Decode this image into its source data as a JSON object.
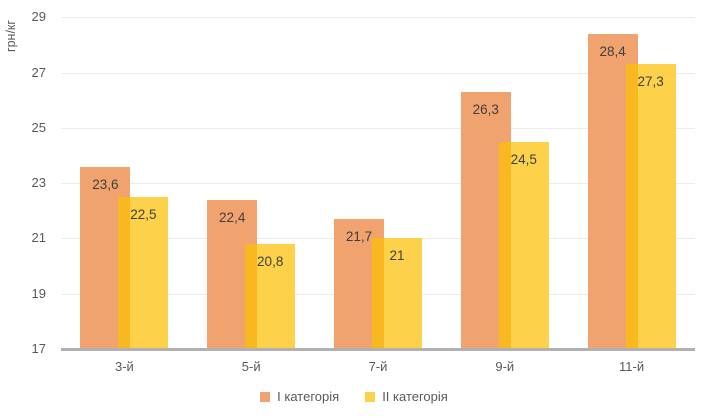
{
  "chart_data": {
    "type": "bar",
    "title": "",
    "ylabel": "грн/кг",
    "categories": [
      "3-й",
      "5-й",
      "7-й",
      "9-й",
      "11-й"
    ],
    "series": [
      {
        "name": "І категорія",
        "color": "#F0A36E",
        "values": [
          23.6,
          22.4,
          21.7,
          26.3,
          28.4
        ],
        "labels": [
          "23,6",
          "22,4",
          "21,7",
          "26,3",
          "28,4"
        ]
      },
      {
        "name": "ІІ категорія",
        "color": "#FDD24A",
        "values": [
          22.5,
          20.8,
          21,
          24.5,
          27.3
        ],
        "labels": [
          "22,5",
          "20,8",
          "21",
          "24,5",
          "27,3"
        ]
      }
    ],
    "overlap_color": "#F9B81F",
    "ylim": [
      17,
      29
    ],
    "yticks": [
      17,
      19,
      21,
      23,
      25,
      27,
      29
    ],
    "grid": "horizontal",
    "legend_position": "bottom-center",
    "value_labels": "inside-top",
    "decimal_separator": ","
  },
  "style": {
    "grid_color": "#ECECEC",
    "axis_line_color": "#B1B1B1",
    "tick_text_color": "#595959",
    "data_label_color": "#3F3F3F",
    "background": "#FFFFFF"
  }
}
